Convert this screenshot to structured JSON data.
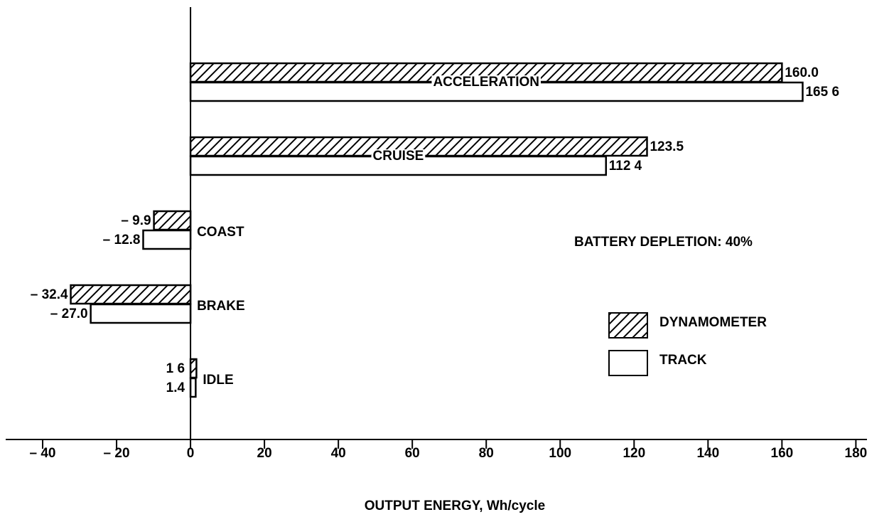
{
  "chart_data": {
    "type": "hbar",
    "x_label": "OUTPUT ENERGY, Wh/cycle",
    "annotation": "BATTERY DEPLETION: 40%",
    "categories": [
      "ACCELERATION",
      "CRUISE",
      "COAST",
      "BRAKE",
      "IDLE"
    ],
    "series": [
      {
        "name": "DYNAMOMETER",
        "color": "#000000",
        "hatch": true,
        "values": [
          160.0,
          123.5,
          -9.9,
          -32.4,
          1.6
        ],
        "value_labels": [
          "160.0",
          "123.5",
          "– 9.9",
          "– 32.4",
          "1 6"
        ]
      },
      {
        "name": "TRACK",
        "color": "#000000",
        "hatch": false,
        "values": [
          165.6,
          112.4,
          -12.8,
          -27.0,
          1.4
        ],
        "value_labels": [
          "165 6",
          "112 4",
          "– 12.8",
          "– 27.0",
          "1.4"
        ]
      }
    ],
    "xlim": [
      -50,
      183
    ],
    "xticks": [
      {
        "value": -40,
        "label": "– 40"
      },
      {
        "value": -20,
        "label": "– 20"
      },
      0,
      20,
      40,
      60,
      80,
      100,
      120,
      140,
      160,
      180
    ]
  }
}
